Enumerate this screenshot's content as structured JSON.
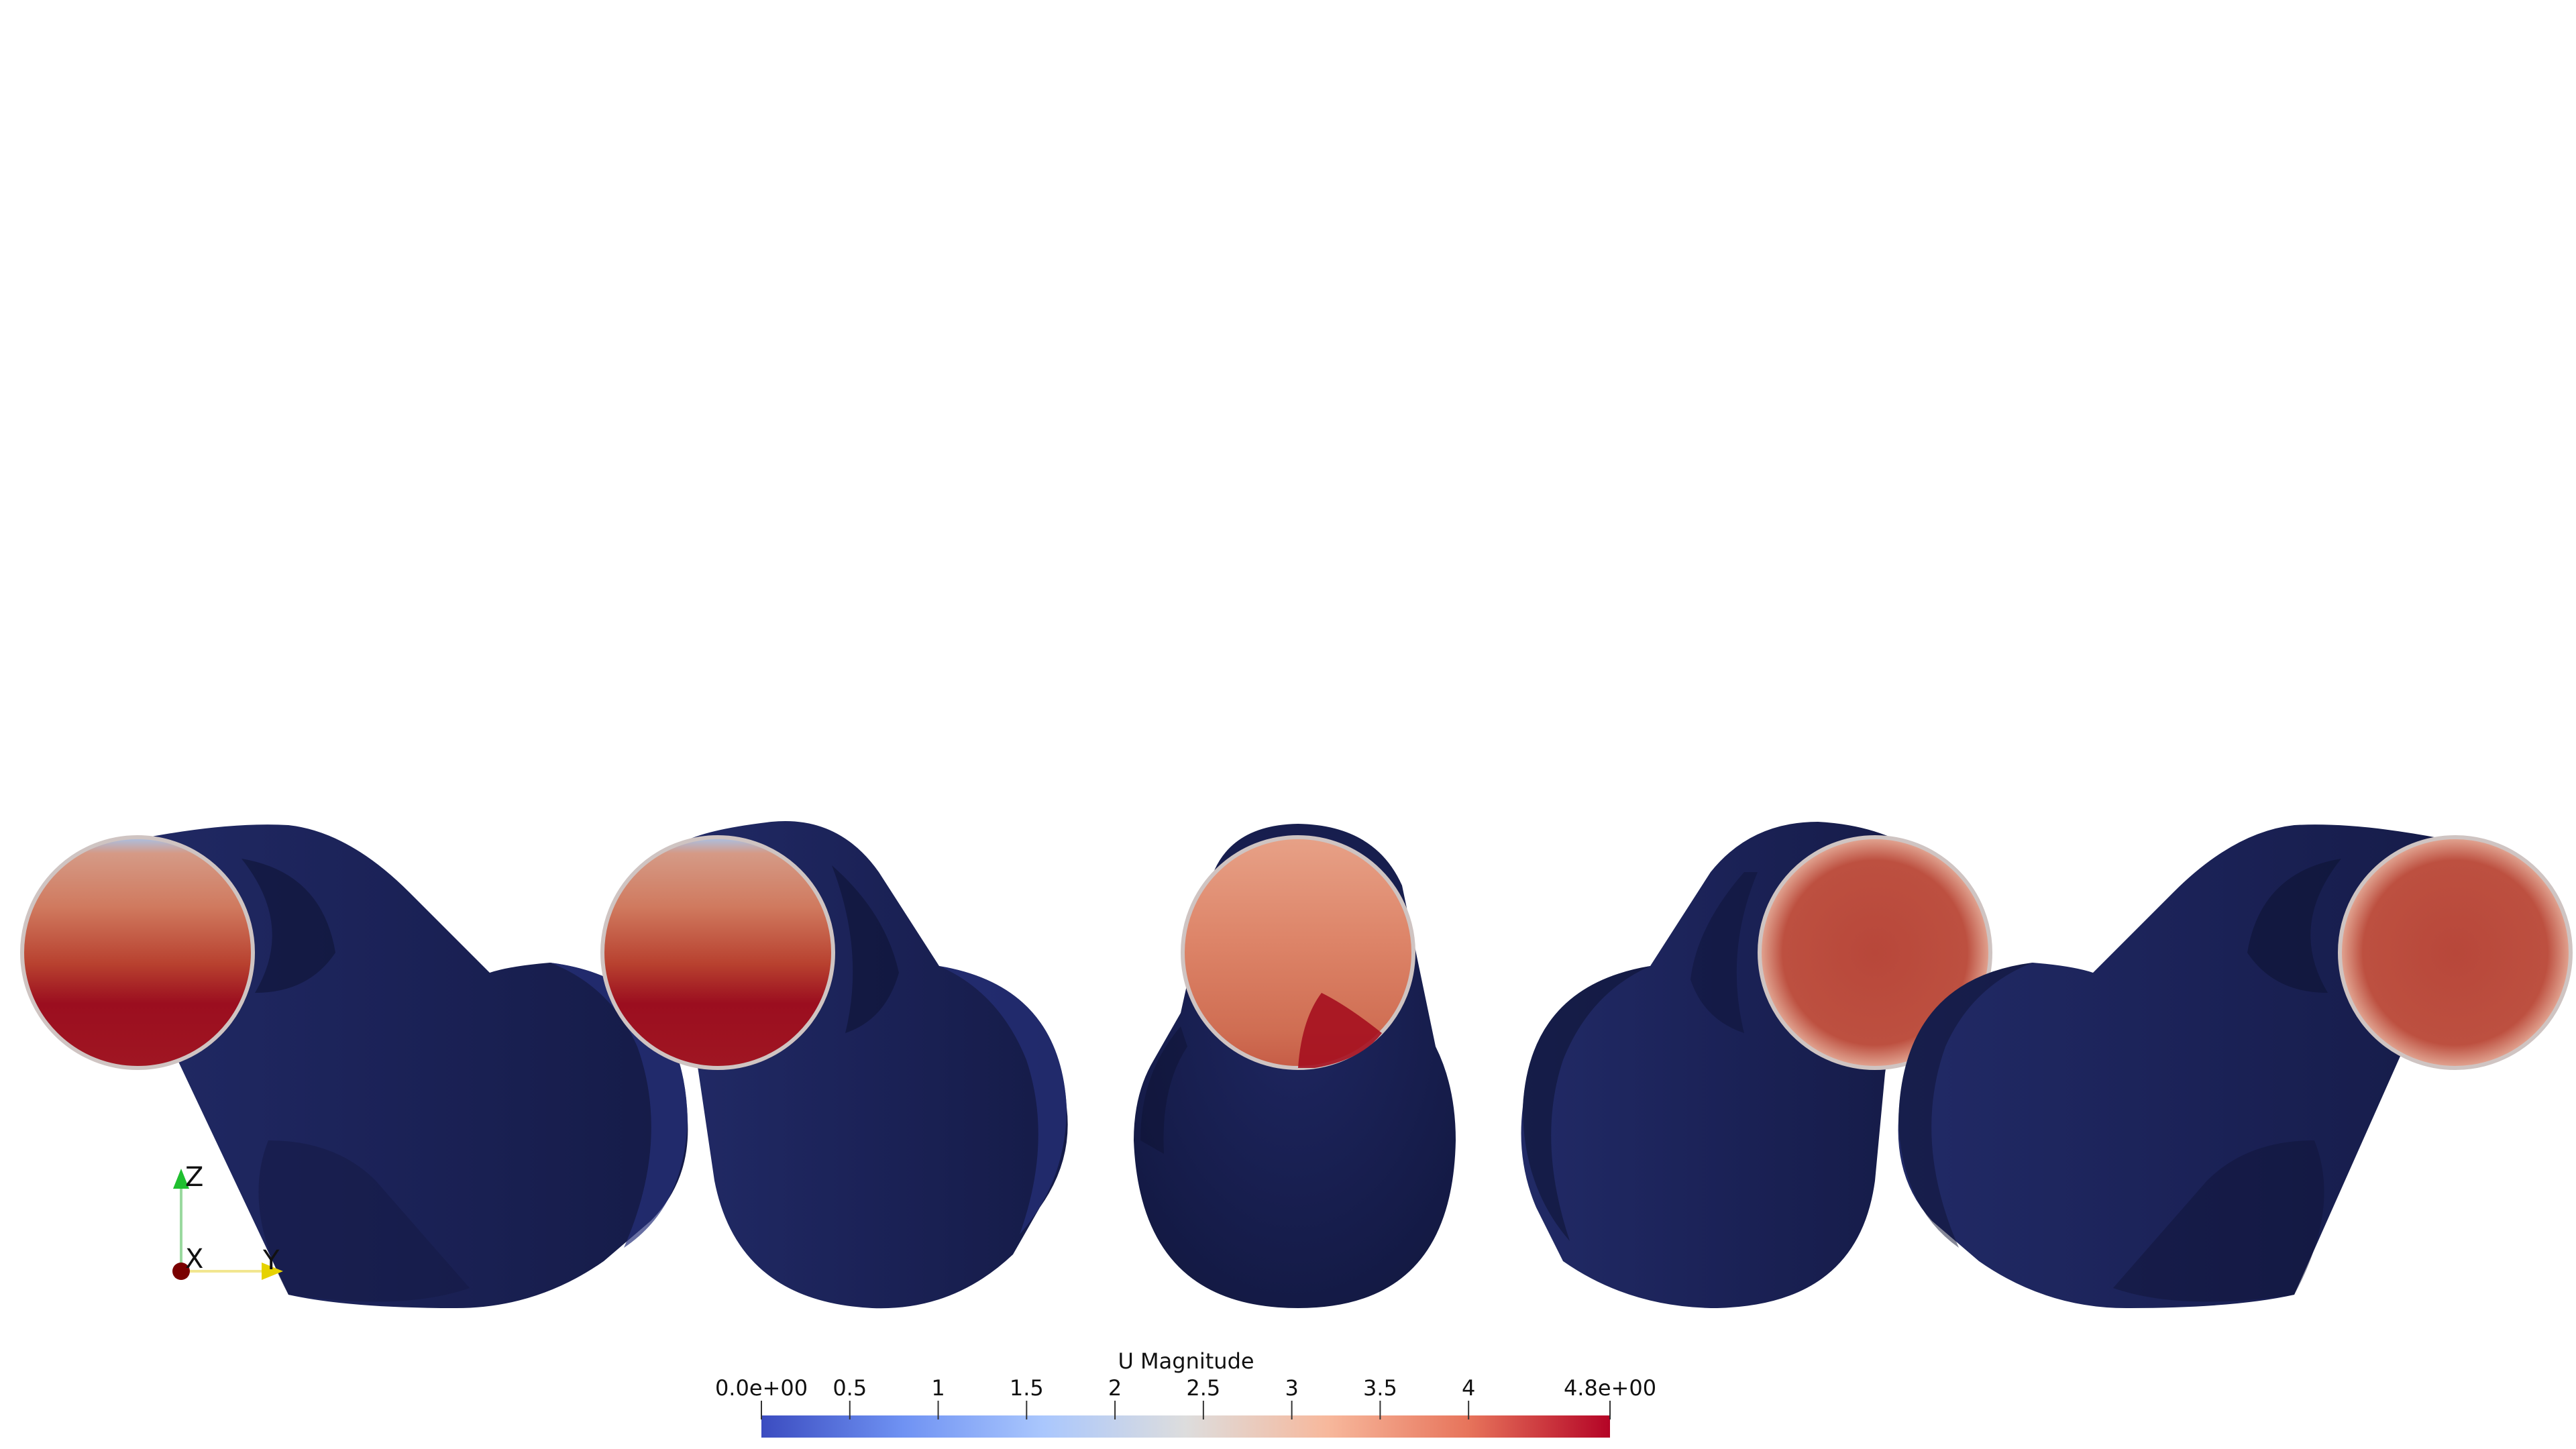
{
  "scalar_bar": {
    "title": "U Magnitude",
    "range": [
      0.0,
      4.8
    ],
    "labels": [
      "0.0e+00",
      "0.5",
      "1",
      "1.5",
      "2",
      "2.5",
      "3",
      "3.5",
      "4",
      "4.8e+00"
    ],
    "colormap": [
      "#3b4cc0",
      "#6f92f3",
      "#aac7fd",
      "#dddddd",
      "#f7b89c",
      "#e7745b",
      "#b40426"
    ]
  },
  "orientation_axes": {
    "labels": [
      "Z",
      "X",
      "Y"
    ],
    "colors": {
      "Z": "#1fbf2f",
      "X": "#7a0000",
      "Y": "#e6d200"
    }
  },
  "surface_colors": {
    "pipe_body": "#1a2055",
    "pipe_shadow": "#0c1233",
    "outlet_rim": "#c9c1c0"
  }
}
